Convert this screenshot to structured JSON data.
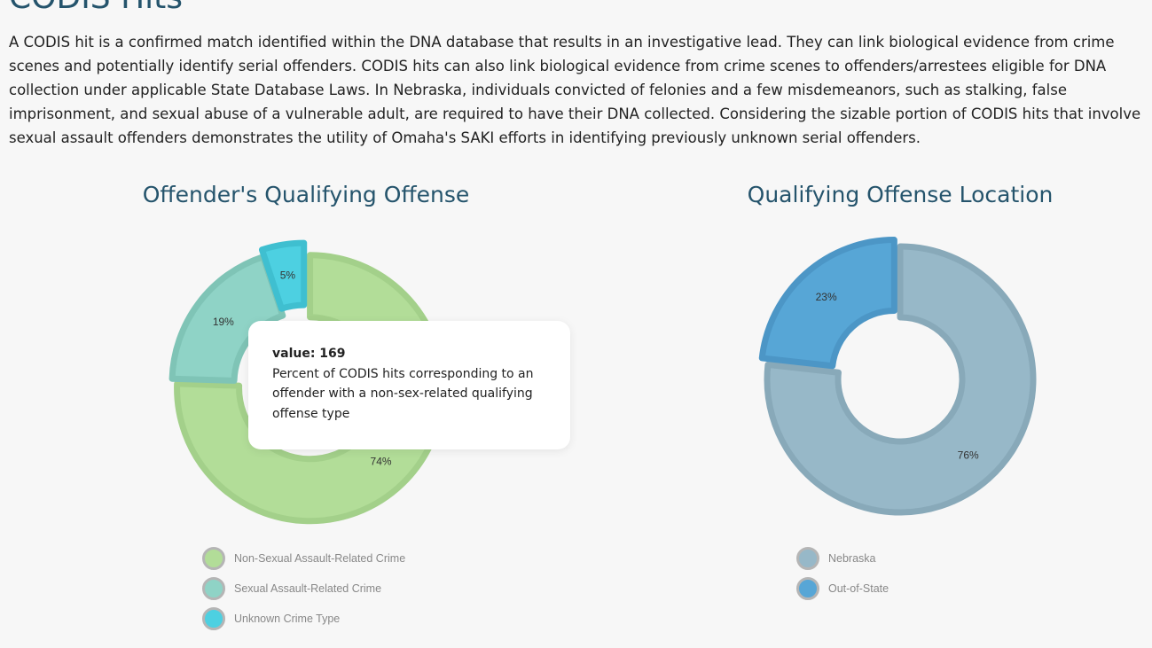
{
  "page": {
    "title": "CODIS Hits",
    "intro": "A CODIS hit is a confirmed match identified within the DNA database that results in an investigative lead. They can link biological evidence from crime scenes and potentially identify serial offenders. CODIS hits can also link biological evidence from crime scenes to offenders/arrestees eligible for DNA collection under applicable State Database Laws. In Nebraska, individuals convicted of felonies and a few misdemeanors, such as stalking, false imprisonment, and sexual abuse of a vulnerable adult, are required to have their DNA collected. Considering the sizable portion of CODIS hits that involve sexual assault offenders demonstrates the utility of Omaha's SAKI efforts in identifying previously unknown serial offenders."
  },
  "tooltip": {
    "value_label": "value: 169",
    "description": "Percent of CODIS hits corresponding to an offender with a non-sex-related qualifying offense type"
  },
  "chart_data": [
    {
      "type": "pie",
      "title": "Offender's Qualifying Offense",
      "slices": [
        {
          "name": "Non-Sexual Assault-Related Crime",
          "value": 74,
          "label": "74%",
          "color": "#b2dd98",
          "stroke": "#a3d08a",
          "exploded": true
        },
        {
          "name": "Sexual Assault-Related Crime",
          "value": 19,
          "label": "19%",
          "color": "#8fd3c6",
          "stroke": "#7fc4b6",
          "exploded": false
        },
        {
          "name": "Unknown Crime Type",
          "value": 5,
          "label": "5%",
          "color": "#4dd0e1",
          "stroke": "#3fbfd0",
          "exploded": true
        }
      ],
      "legend_position": "bottom"
    },
    {
      "type": "pie",
      "title": "Qualifying Offense Location",
      "slices": [
        {
          "name": "Nebraska",
          "value": 76,
          "label": "76%",
          "color": "#97b8c8",
          "stroke": "#88a9b9",
          "exploded": false
        },
        {
          "name": "Out-of-State",
          "value": 23,
          "label": "23%",
          "color": "#57a6d6",
          "stroke": "#4c96c6",
          "exploded": true
        }
      ],
      "legend_position": "bottom"
    }
  ]
}
